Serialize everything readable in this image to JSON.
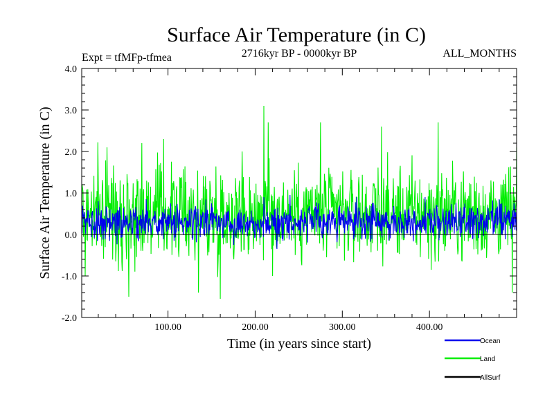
{
  "chart_data": {
    "type": "line",
    "title": "Surface Air Temperature (in C)",
    "subtitle_left": "Expt = tfMFp-tfmea",
    "subtitle_center": "2716kyr BP - 0000kyr BP",
    "subtitle_right": "ALL_MONTHS",
    "xlabel": "Time (in years since start)",
    "ylabel": "Surface Air Temperature (in C)",
    "xlim": [
      1,
      500
    ],
    "ylim": [
      -2.0,
      4.0
    ],
    "x_ticks": [
      100,
      200,
      300,
      400
    ],
    "x_tick_labels": [
      "100.00",
      "200.00",
      "300.00",
      "400.00"
    ],
    "y_ticks": [
      -2.0,
      -1.0,
      0.0,
      1.0,
      2.0,
      3.0,
      4.0
    ],
    "y_tick_labels": [
      "-2.0",
      "-1.0",
      "0.0",
      "1.0",
      "2.0",
      "3.0",
      "4.0"
    ],
    "x_tick_step_minor": 20,
    "y_tick_step_minor": 0.2,
    "zero_line": 0.0,
    "series": [
      {
        "name": "Land",
        "color": "#00ee00",
        "baseline": 0.5,
        "spread": 0.55,
        "extremes": [
          [
            5,
            -1.0
          ],
          [
            30,
            2.1
          ],
          [
            55,
            -1.5
          ],
          [
            70,
            2.2
          ],
          [
            95,
            2.3
          ],
          [
            135,
            -1.4
          ],
          [
            160,
            -1.55
          ],
          [
            185,
            2.0
          ],
          [
            210,
            3.1
          ],
          [
            215,
            2.7
          ],
          [
            220,
            -1.0
          ],
          [
            275,
            2.7
          ],
          [
            345,
            2.6
          ],
          [
            410,
            2.7
          ],
          [
            495,
            -1.4
          ]
        ]
      },
      {
        "name": "Ocean",
        "color": "#0000ee",
        "baseline": 0.3,
        "spread": 0.2,
        "extremes": [
          [
            20,
            0.8
          ],
          [
            75,
            0.85
          ],
          [
            150,
            0.75
          ],
          [
            210,
            0.9
          ],
          [
            240,
            0.95
          ],
          [
            225,
            -0.35
          ],
          [
            395,
            0.9
          ],
          [
            480,
            0.85
          ]
        ]
      },
      {
        "name": "AllSurf",
        "color": "#000000",
        "values": []
      }
    ]
  }
}
